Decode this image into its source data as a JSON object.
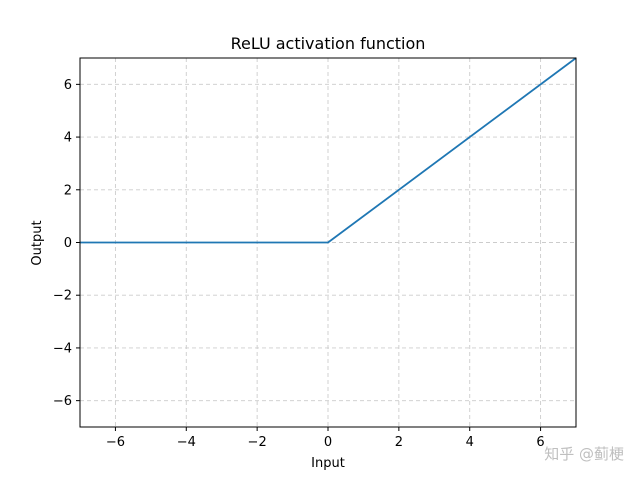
{
  "chart_data": {
    "type": "line",
    "title": "ReLU activation function",
    "xlabel": "Input",
    "ylabel": "Output",
    "xlim": [
      -7,
      7
    ],
    "ylim": [
      -7,
      7
    ],
    "xticks": [
      -6,
      -4,
      -2,
      0,
      2,
      4,
      6
    ],
    "yticks": [
      -6,
      -4,
      -2,
      0,
      2,
      4,
      6
    ],
    "xtick_labels": [
      "−6",
      "−4",
      "−2",
      "0",
      "2",
      "4",
      "6"
    ],
    "ytick_labels": [
      "−6",
      "−4",
      "−2",
      "0",
      "2",
      "4",
      "6"
    ],
    "grid": true,
    "grid_style": "dashed",
    "series": [
      {
        "color": "#1f77b4",
        "x": [
          -7,
          0,
          7
        ],
        "y": [
          0,
          0,
          7
        ]
      }
    ]
  },
  "watermark": "知乎 @蓟梗"
}
